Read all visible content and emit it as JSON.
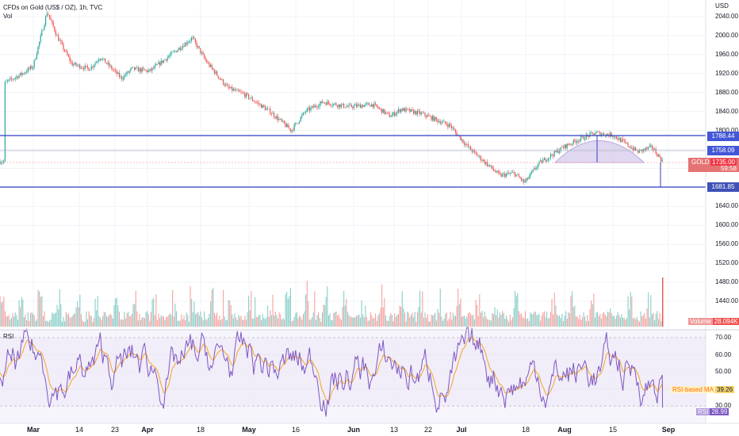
{
  "header": {
    "symbol_title": "CFDs on Gold (US$ / OZ), 1h, TVC",
    "volume_label": "Vol",
    "rsi_label": "RSI"
  },
  "price_axis": {
    "currency": "USD",
    "ticks": [
      "2040.00",
      "2000.00",
      "1960.00",
      "1920.00",
      "1880.00",
      "1840.00",
      "1800.00",
      "1760.00",
      "1720.00",
      "1680.00",
      "1640.00",
      "1600.00",
      "1560.00",
      "1520.00",
      "1480.00",
      "1440.00"
    ]
  },
  "rsi_axis": {
    "ticks": [
      "70.00",
      "60.00",
      "50.00",
      "40.00",
      "30.00"
    ]
  },
  "time_axis": {
    "labels": [
      {
        "text": "Mar",
        "major": true
      },
      {
        "text": "14",
        "major": false
      },
      {
        "text": "23",
        "major": false
      },
      {
        "text": "Apr",
        "major": true
      },
      {
        "text": "18",
        "major": false
      },
      {
        "text": "May",
        "major": true
      },
      {
        "text": "16",
        "major": false
      },
      {
        "text": "Jun",
        "major": true
      },
      {
        "text": "13",
        "major": false
      },
      {
        "text": "22",
        "major": false
      },
      {
        "text": "Jul",
        "major": true
      },
      {
        "text": "18",
        "major": false
      },
      {
        "text": "Aug",
        "major": true
      },
      {
        "text": "15",
        "major": false
      },
      {
        "text": "Sep",
        "major": true
      }
    ]
  },
  "labels": {
    "level_upper": "1788.44",
    "level_mid": "1758.09",
    "gold_name": "GOLD",
    "gold_price": "1735.00",
    "gold_countdown": "59:58",
    "level_lower": "1681.85",
    "volume_name": "Volume",
    "volume_value": "28.094K",
    "rsi_ma_name": "RSI-based MA",
    "rsi_ma_value": "39.26",
    "rsi_name": "RSI",
    "rsi_value": "28.99"
  },
  "colors": {
    "up": "#26a69a",
    "down": "#ef5350",
    "level_line": "#2f3ec2",
    "gold_tag": "#f23645",
    "rsi_line": "#7e57c2",
    "rsi_ma": "#f5a623",
    "rsi_band": "#ede7f6",
    "cup_fill": "#d1c4e9"
  },
  "chart_data": {
    "type": "line",
    "price_anchors": [
      {
        "date": "late Feb",
        "price": 1900
      },
      {
        "date": "Mar 1",
        "price": 1920
      },
      {
        "date": "Mar 4",
        "price": 1935
      },
      {
        "date": "Mar 8",
        "price": 2050
      },
      {
        "date": "Mar 11",
        "price": 1995
      },
      {
        "date": "Mar 15",
        "price": 1940
      },
      {
        "date": "Mar 20",
        "price": 1930
      },
      {
        "date": "Mar 23",
        "price": 1955
      },
      {
        "date": "Mar 29",
        "price": 1910
      },
      {
        "date": "Apr 1",
        "price": 1930
      },
      {
        "date": "Apr 6",
        "price": 1925
      },
      {
        "date": "Apr 12",
        "price": 1960
      },
      {
        "date": "Apr 18",
        "price": 1995
      },
      {
        "date": "Apr 22",
        "price": 1945
      },
      {
        "date": "Apr 28",
        "price": 1890
      },
      {
        "date": "May 3",
        "price": 1875
      },
      {
        "date": "May 10",
        "price": 1840
      },
      {
        "date": "May 16",
        "price": 1800
      },
      {
        "date": "May 20",
        "price": 1840
      },
      {
        "date": "May 25",
        "price": 1860
      },
      {
        "date": "Jun 1",
        "price": 1850
      },
      {
        "date": "Jun 8",
        "price": 1855
      },
      {
        "date": "Jun 13",
        "price": 1830
      },
      {
        "date": "Jun 16",
        "price": 1845
      },
      {
        "date": "Jun 22",
        "price": 1835
      },
      {
        "date": "Jun 30",
        "price": 1810
      },
      {
        "date": "Jul 1",
        "price": 1800
      },
      {
        "date": "Jul 5",
        "price": 1765
      },
      {
        "date": "Jul 8",
        "price": 1745
      },
      {
        "date": "Jul 14",
        "price": 1705
      },
      {
        "date": "Jul 18",
        "price": 1710
      },
      {
        "date": "Jul 21",
        "price": 1690
      },
      {
        "date": "Jul 25",
        "price": 1730
      },
      {
        "date": "Aug 1",
        "price": 1765
      },
      {
        "date": "Aug 5",
        "price": 1780
      },
      {
        "date": "Aug 10",
        "price": 1795
      },
      {
        "date": "Aug 15",
        "price": 1790
      },
      {
        "date": "Aug 18",
        "price": 1775
      },
      {
        "date": "Aug 22",
        "price": 1755
      },
      {
        "date": "Aug 26",
        "price": 1765
      },
      {
        "date": "Aug 29",
        "price": 1735
      }
    ],
    "price_range": [
      1420,
      2060
    ],
    "levels": [
      1788.44,
      1758.09,
      1735.0,
      1681.85
    ],
    "rsi_range": [
      22,
      76
    ],
    "rsi_levels": [
      70,
      30
    ],
    "last_rsi": 28.99,
    "last_rsi_ma": 39.26,
    "last_volume": "28.094K",
    "grid": true
  }
}
